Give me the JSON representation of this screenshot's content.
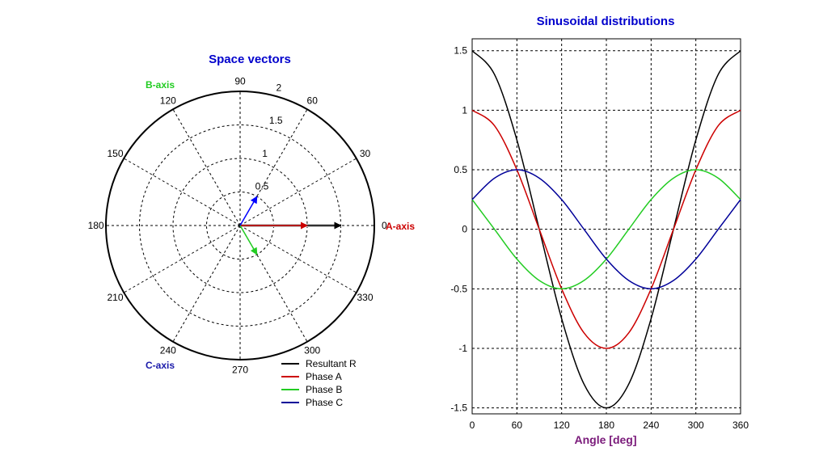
{
  "colors": {
    "title": "#0000cc",
    "a_axis_label": "#cc0000",
    "b_axis_label": "#22cc22",
    "c_axis_label": "#1a1aaa",
    "xlabel": "#7a1a7a",
    "resultant": "#000000",
    "phase_a": "#cc0000",
    "phase_b": "#22cc22",
    "phase_c": "#000099"
  },
  "chart_data": [
    {
      "type": "polar",
      "title": "Space vectors",
      "angle_ticks_deg": [
        "0",
        "30",
        "60",
        "90",
        "120",
        "150",
        "180",
        "210",
        "240",
        "270",
        "300",
        "330"
      ],
      "radial_ticks": [
        "0.5",
        "1",
        "1.5",
        "2"
      ],
      "radial_max": 2,
      "grid": true,
      "axis_labels": {
        "a": "A-axis",
        "b": "B-axis",
        "c": "C-axis"
      },
      "vectors": [
        {
          "name": "Resultant R",
          "magnitude": 1.5,
          "angle_deg": 0,
          "color_key": "resultant"
        },
        {
          "name": "Phase A",
          "magnitude": 1.0,
          "angle_deg": 0,
          "color_key": "phase_a"
        },
        {
          "name": "Phase B",
          "magnitude": 0.5,
          "angle_deg": 300,
          "color_key": "phase_b"
        },
        {
          "name": "Phase C",
          "magnitude": 0.5,
          "angle_deg": 60,
          "color_key": "phase_c"
        }
      ],
      "legend": {
        "placement": "bottom-right",
        "entries": [
          {
            "label": "Resultant R",
            "color_key": "resultant"
          },
          {
            "label": "Phase A",
            "color_key": "phase_a"
          },
          {
            "label": "Phase B",
            "color_key": "phase_b"
          },
          {
            "label": "Phase C",
            "color_key": "phase_c"
          }
        ]
      }
    },
    {
      "type": "line",
      "title": "Sinusoidal distributions",
      "xlabel": "Angle [deg]",
      "ylabel": "",
      "xlim": [
        0,
        360
      ],
      "ylim": [
        -1.55,
        1.6
      ],
      "xticks": [
        0,
        60,
        120,
        180,
        240,
        300,
        360
      ],
      "yticks": [
        -1.5,
        -1,
        -0.5,
        0,
        0.5,
        1,
        1.5
      ],
      "grid": true,
      "x": [
        0,
        30,
        60,
        90,
        120,
        150,
        180,
        210,
        240,
        270,
        300,
        330,
        360
      ],
      "series": [
        {
          "name": "Resultant R",
          "color_key": "resultant",
          "values": [
            1.5,
            1.3,
            0.75,
            0,
            -0.75,
            -1.3,
            -1.5,
            -1.3,
            -0.75,
            0,
            0.75,
            1.3,
            1.5
          ]
        },
        {
          "name": "Phase A",
          "color_key": "phase_a",
          "values": [
            1.0,
            0.87,
            0.5,
            0,
            -0.5,
            -0.87,
            -1.0,
            -0.87,
            -0.5,
            0,
            0.5,
            0.87,
            1.0
          ]
        },
        {
          "name": "Phase B",
          "color_key": "phase_b",
          "values": [
            0.25,
            0,
            -0.25,
            -0.43,
            -0.5,
            -0.43,
            -0.25,
            0,
            0.25,
            0.43,
            0.5,
            0.43,
            0.25
          ]
        },
        {
          "name": "Phase C",
          "color_key": "phase_c",
          "values": [
            0.25,
            0.43,
            0.5,
            0.43,
            0.25,
            0,
            -0.25,
            -0.43,
            -0.5,
            -0.43,
            -0.25,
            0,
            0.25
          ]
        }
      ]
    }
  ]
}
